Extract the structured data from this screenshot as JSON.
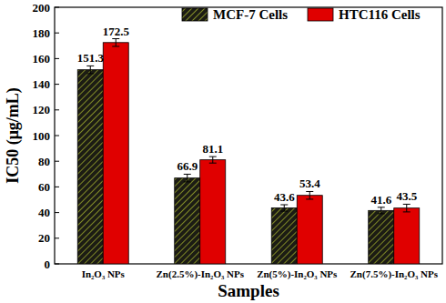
{
  "chart_data": {
    "type": "bar",
    "x_label": "Samples",
    "y_label": "IC50 (μg/mL)",
    "categories": [
      "In₂O₃ NPs",
      "Zn(2.5%)-In₂O₃ NPs",
      "Zn(5%)-In₂O₃ NPs",
      "Zn(7.5%)-In₂O₃ NPs"
    ],
    "series": [
      {
        "name": "MCF-7 Cells",
        "color": "#1c1c14",
        "values": [
          151.3,
          66.9,
          43.6,
          41.6
        ],
        "errors": [
          3,
          3,
          2.5,
          2.5
        ]
      },
      {
        "name": "HTC116 Cells",
        "color": "#e00000",
        "values": [
          172.5,
          81.1,
          53.4,
          43.5
        ],
        "errors": [
          3,
          2.5,
          3,
          3
        ]
      }
    ],
    "ylim": [
      0,
      200
    ],
    "yticks": [
      0,
      20,
      40,
      60,
      80,
      100,
      120,
      140,
      160,
      180,
      200
    ],
    "data_labels": true,
    "legend": "top",
    "grid": false
  }
}
